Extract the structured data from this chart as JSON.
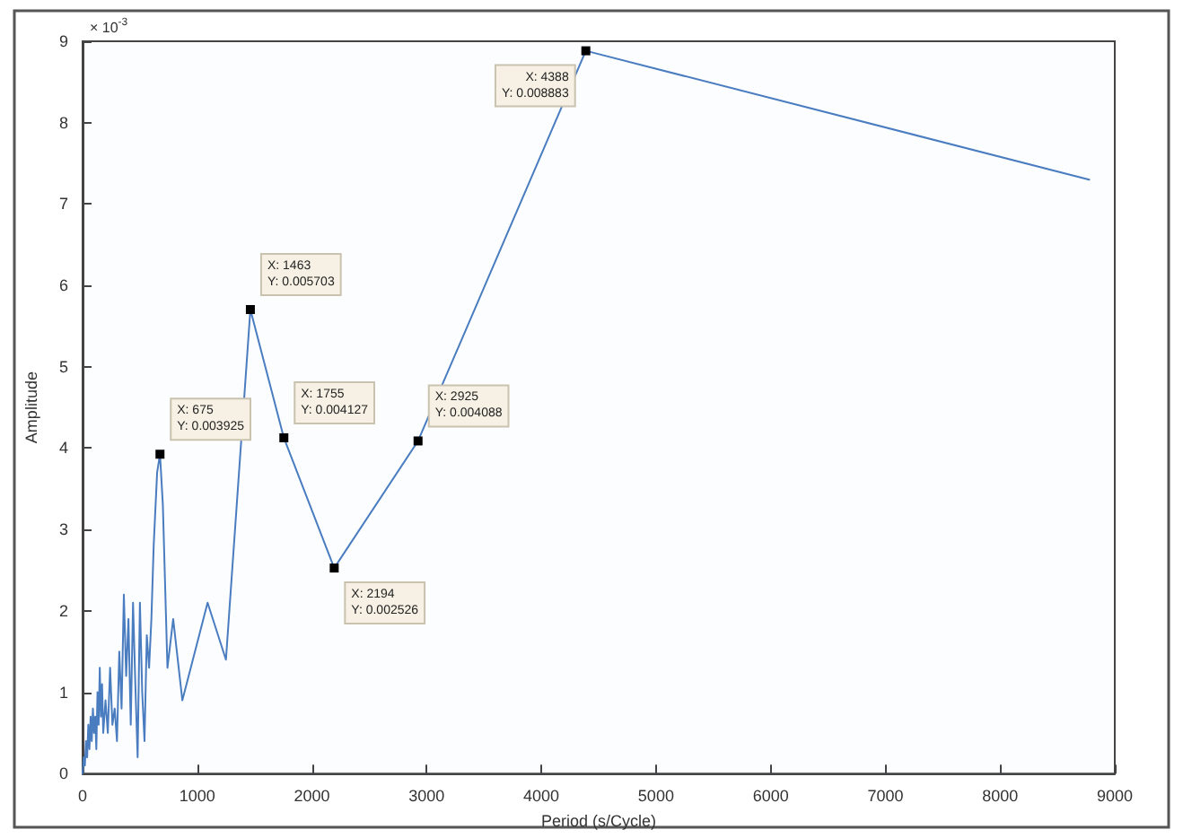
{
  "chart_data": {
    "type": "line",
    "xlabel": "Period (s/Cycle)",
    "ylabel": "Amplitude",
    "x": [
      0,
      10,
      20,
      30,
      40,
      50,
      60,
      70,
      80,
      90,
      100,
      110,
      120,
      130,
      140,
      150,
      160,
      170,
      180,
      200,
      220,
      240,
      260,
      280,
      300,
      320,
      340,
      360,
      380,
      400,
      420,
      440,
      460,
      480,
      500,
      520,
      540,
      560,
      580,
      600,
      620,
      650,
      675,
      700,
      740,
      790,
      870,
      1090,
      1250,
      1463,
      1755,
      2194,
      2925,
      4388,
      8777
    ],
    "series": [
      {
        "color": "#4a7cc0",
        "values": [
          0,
          0.2,
          0.1,
          0.4,
          0.2,
          0.6,
          0.3,
          0.7,
          0.4,
          0.8,
          0.5,
          0.7,
          0.3,
          1.0,
          0.6,
          1.3,
          0.7,
          1.1,
          0.5,
          0.9,
          0.5,
          1.3,
          0.6,
          0.8,
          0.4,
          1.5,
          0.8,
          2.2,
          1.2,
          1.9,
          0.6,
          2.1,
          1.1,
          0.2,
          2.1,
          1.0,
          0.4,
          1.7,
          1.3,
          1.9,
          2.8,
          3.7,
          3.925,
          3.3,
          1.3,
          1.9,
          0.9,
          2.1,
          1.4,
          5.703,
          4.127,
          2.526,
          4.088,
          8.883,
          7.3
        ]
      }
    ],
    "xlim": [
      0,
      9000
    ],
    "xticks": [
      0,
      1000,
      2000,
      3000,
      4000,
      5000,
      6000,
      7000,
      8000,
      9000
    ],
    "ylim": [
      0,
      9
    ],
    "yticks": [
      0,
      1,
      2,
      3,
      4,
      5,
      6,
      7,
      8,
      9
    ],
    "annotations": [
      "× 10$^{-3}$",
      {
        "text": "X: 675\nY: 0.003925",
        "x": 675,
        "y": 3.925
      },
      {
        "text": "X: 1463\nY: 0.005703",
        "x": 1463,
        "y": 5.703
      },
      {
        "text": "X: 1755\nY: 0.004127",
        "x": 1755,
        "y": 4.127
      },
      {
        "text": "X: 2194\nY: 0.002526",
        "x": 2194,
        "y": 2.526
      },
      {
        "text": "X: 2925\nY: 0.004088",
        "x": 2925,
        "y": 4.088
      },
      {
        "text": "X: 4388\nY: 0.008883",
        "x": 4388,
        "y": 8.883
      }
    ],
    "grid": false,
    "marker": "none",
    "line_style": "solid"
  }
}
